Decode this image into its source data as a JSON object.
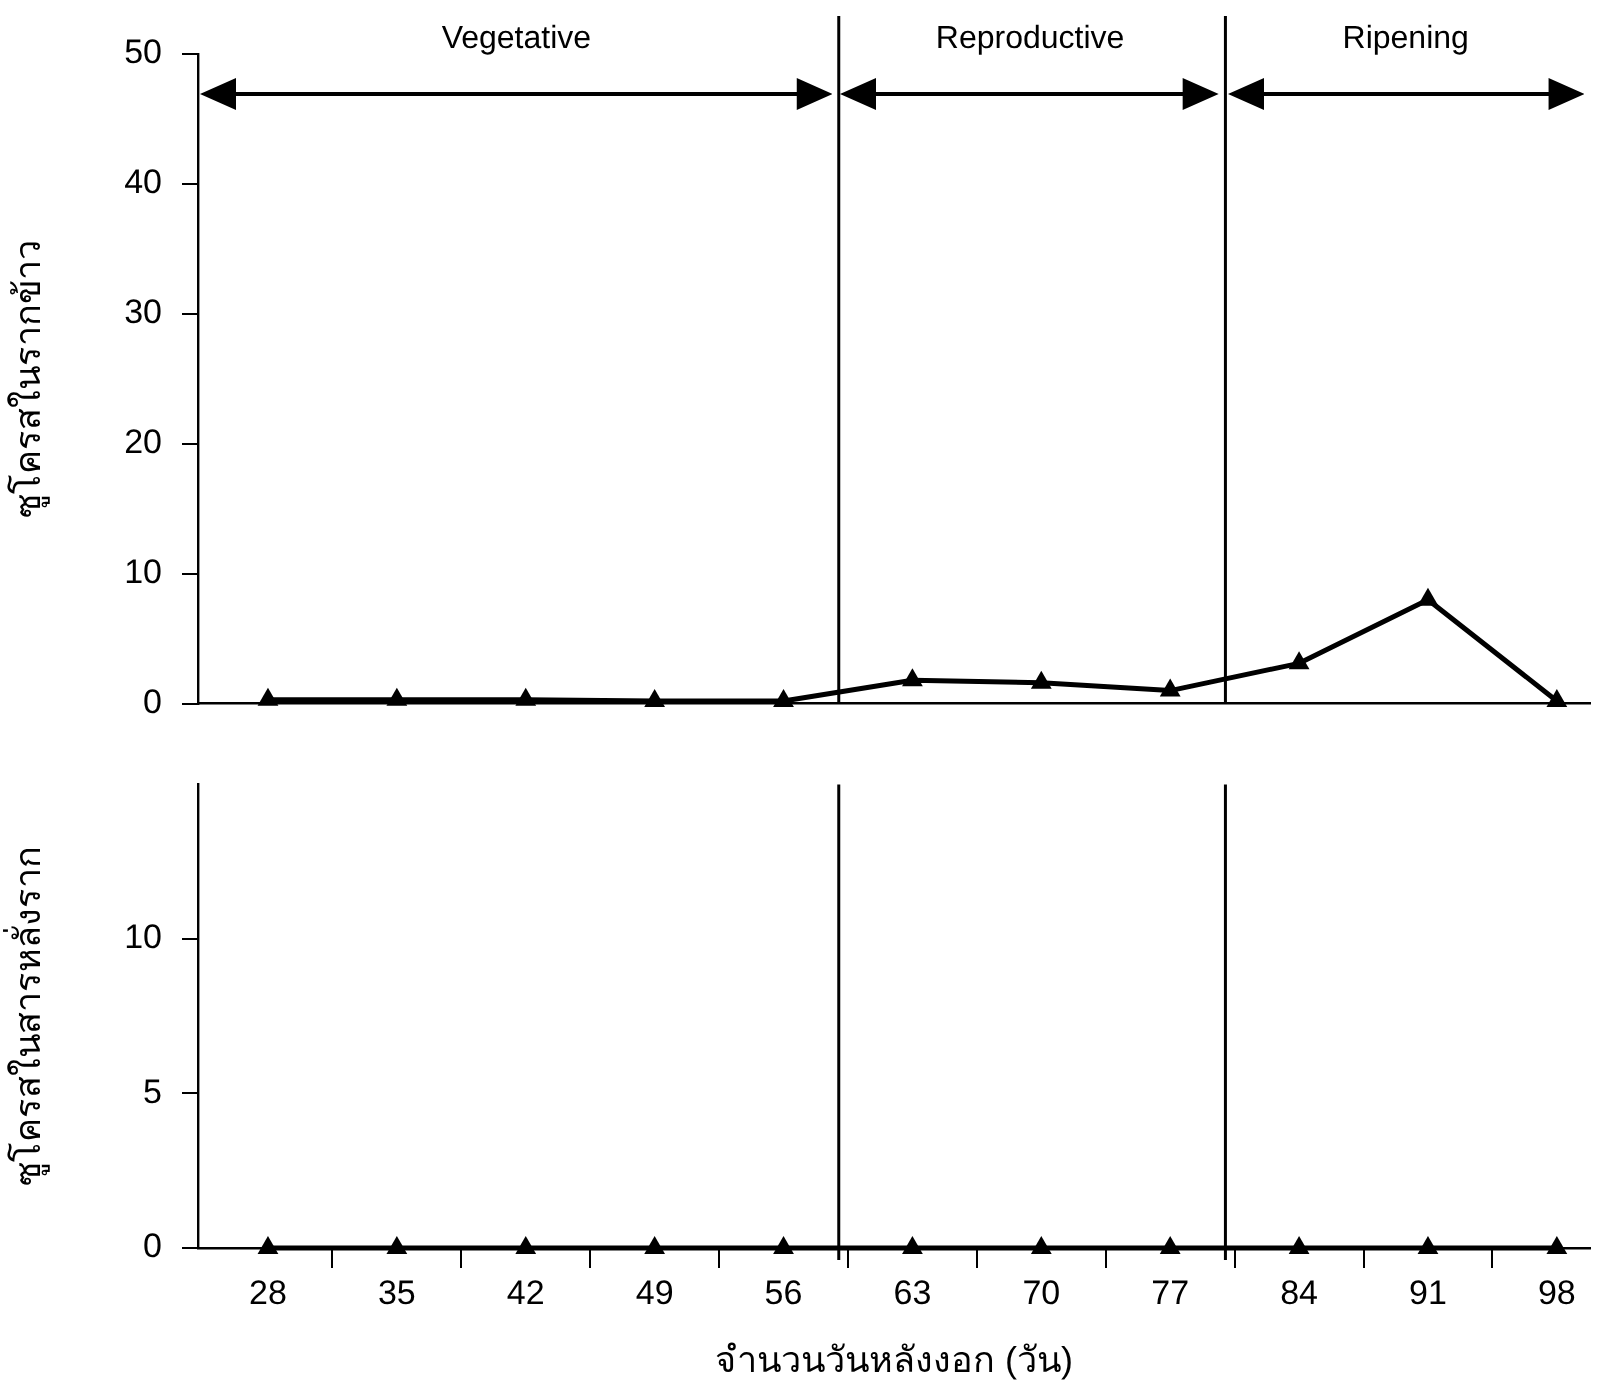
{
  "chart_data": [
    {
      "type": "line",
      "ylabel": "ซูโครสในรากข้าว",
      "x": [
        28,
        35,
        42,
        49,
        56,
        63,
        70,
        77,
        84,
        91,
        98
      ],
      "xlim": [
        24.2,
        99.8
      ],
      "ylim": [
        0,
        50
      ],
      "yticks": [
        0,
        10,
        20,
        30,
        40,
        50
      ],
      "tick_labels": "y",
      "grid": false,
      "marker": "triangle",
      "line_style": "solid",
      "series": [
        {
          "color": "#000000",
          "values": [
            0.3,
            0.3,
            0.3,
            0.2,
            0.2,
            1.8,
            1.6,
            1.0,
            3.1,
            8.0,
            0.2
          ]
        }
      ],
      "ref_lines": [
        {
          "axis": "x",
          "value": 59,
          "color": "#000000"
        },
        {
          "axis": "x",
          "value": 80,
          "color": "#000000"
        }
      ],
      "annotations": [
        "Vegetative",
        "Reproductive",
        "Ripening"
      ]
    },
    {
      "type": "line",
      "xlabel": "จำนวนวันหลังงอก (วัน)",
      "ylabel": "ซูโครสในสารหลั่งราก",
      "x": [
        28,
        35,
        42,
        49,
        56,
        63,
        70,
        77,
        84,
        91,
        98
      ],
      "xlim": [
        24.2,
        99.8
      ],
      "ylim": [
        0,
        15
      ],
      "yticks": [
        0,
        5,
        10
      ],
      "xticks": [
        28,
        {
          "value": 31.5,
          "label": null
        },
        35,
        {
          "value": 38.5,
          "label": null
        },
        42,
        {
          "value": 45.5,
          "label": null
        },
        49,
        {
          "value": 52.5,
          "label": null
        },
        56,
        {
          "value": 59.5,
          "label": null
        },
        63,
        {
          "value": 66.5,
          "label": null
        },
        70,
        {
          "value": 73.5,
          "label": null
        },
        77,
        {
          "value": 80.5,
          "label": null
        },
        84,
        {
          "value": 87.5,
          "label": null
        },
        91,
        {
          "value": 94.5,
          "label": null
        },
        98
      ],
      "grid": false,
      "marker": "triangle",
      "line_style": "solid",
      "series": [
        {
          "color": "#000000",
          "values": [
            0,
            0,
            0,
            0,
            0,
            0,
            0,
            0,
            0,
            0,
            0
          ]
        }
      ],
      "ref_lines": [
        {
          "axis": "x",
          "value": 59,
          "color": "#000000"
        },
        {
          "axis": "x",
          "value": 80,
          "color": "#000000"
        }
      ]
    }
  ]
}
